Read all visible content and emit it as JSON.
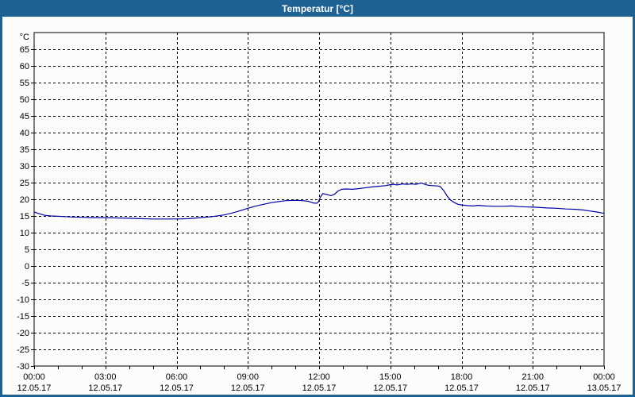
{
  "window": {
    "title": "Temperatur [°C]",
    "colors": {
      "titlebar": "#1e6193",
      "border": "#1e6193",
      "background": "#fcfdfa"
    }
  },
  "chart_data": {
    "type": "line",
    "title": "Temperatur [°C]",
    "ylabel": "°C",
    "xlabel": "",
    "legend": "none",
    "grid": "dashed-black",
    "line_color": "#0000a8",
    "frame_color": "#000000",
    "ylim": [
      -30,
      70
    ],
    "y_label_step": 5,
    "y_tick_labels": [
      65,
      60,
      55,
      50,
      45,
      40,
      35,
      30,
      25,
      20,
      15,
      10,
      5,
      0,
      -5,
      -10,
      -15,
      -20,
      -25,
      -30
    ],
    "x_range_hours": [
      0,
      24
    ],
    "x_major_step_hours": 3,
    "x_minor_step_hours": 1,
    "x_ticks": [
      {
        "time": "00:00",
        "date": "12.05.17"
      },
      {
        "time": "03:00",
        "date": "12.05.17"
      },
      {
        "time": "06:00",
        "date": "12.05.17"
      },
      {
        "time": "09:00",
        "date": "12.05.17"
      },
      {
        "time": "12:00",
        "date": "12.05.17"
      },
      {
        "time": "15:00",
        "date": "12.05.17"
      },
      {
        "time": "18:00",
        "date": "12.05.17"
      },
      {
        "time": "21:00",
        "date": "12.05.17"
      },
      {
        "time": "00:00",
        "date": "13.05.17"
      }
    ],
    "series": [
      {
        "name": "Temperatur",
        "unit": "°C",
        "points": [
          [
            0.0,
            16.2
          ],
          [
            0.2,
            15.7
          ],
          [
            0.45,
            15.2
          ],
          [
            0.7,
            15.0
          ],
          [
            1.0,
            14.9
          ],
          [
            1.3,
            14.8
          ],
          [
            1.6,
            14.7
          ],
          [
            2.0,
            14.6
          ],
          [
            2.5,
            14.5
          ],
          [
            3.0,
            14.5
          ],
          [
            3.5,
            14.4
          ],
          [
            4.0,
            14.3
          ],
          [
            4.5,
            14.2
          ],
          [
            5.0,
            14.1
          ],
          [
            5.5,
            14.1
          ],
          [
            6.0,
            14.1
          ],
          [
            6.5,
            14.2
          ],
          [
            7.0,
            14.5
          ],
          [
            7.5,
            14.8
          ],
          [
            8.0,
            15.3
          ],
          [
            8.3,
            15.8
          ],
          [
            8.6,
            16.4
          ],
          [
            9.0,
            17.3
          ],
          [
            9.3,
            17.9
          ],
          [
            9.6,
            18.4
          ],
          [
            10.0,
            19.0
          ],
          [
            10.3,
            19.3
          ],
          [
            10.6,
            19.6
          ],
          [
            11.0,
            19.7
          ],
          [
            11.3,
            19.6
          ],
          [
            11.55,
            19.4
          ],
          [
            11.75,
            18.9
          ],
          [
            11.9,
            18.8
          ],
          [
            11.97,
            19.2
          ],
          [
            12.05,
            20.6
          ],
          [
            12.15,
            21.7
          ],
          [
            12.3,
            21.5
          ],
          [
            12.5,
            21.1
          ],
          [
            12.65,
            21.5
          ],
          [
            12.8,
            22.5
          ],
          [
            12.95,
            23.0
          ],
          [
            13.15,
            23.1
          ],
          [
            13.4,
            23.0
          ],
          [
            13.65,
            23.2
          ],
          [
            13.9,
            23.4
          ],
          [
            14.2,
            23.7
          ],
          [
            14.5,
            23.9
          ],
          [
            14.8,
            24.1
          ],
          [
            15.0,
            24.4
          ],
          [
            15.15,
            24.5
          ],
          [
            15.3,
            24.3
          ],
          [
            15.5,
            24.6
          ],
          [
            15.7,
            24.5
          ],
          [
            15.9,
            24.6
          ],
          [
            16.1,
            24.5
          ],
          [
            16.3,
            24.9
          ],
          [
            16.45,
            24.5
          ],
          [
            16.6,
            24.2
          ],
          [
            16.8,
            24.1
          ],
          [
            17.0,
            24.0
          ],
          [
            17.1,
            23.8
          ],
          [
            17.25,
            22.6
          ],
          [
            17.4,
            20.9
          ],
          [
            17.55,
            19.7
          ],
          [
            17.7,
            19.0
          ],
          [
            17.85,
            18.5
          ],
          [
            18.0,
            18.3
          ],
          [
            18.25,
            18.1
          ],
          [
            18.5,
            18.0
          ],
          [
            18.7,
            18.2
          ],
          [
            19.0,
            18.0
          ],
          [
            19.4,
            17.9
          ],
          [
            19.8,
            17.9
          ],
          [
            20.1,
            18.0
          ],
          [
            20.4,
            17.8
          ],
          [
            20.8,
            17.7
          ],
          [
            21.2,
            17.6
          ],
          [
            21.6,
            17.4
          ],
          [
            22.0,
            17.3
          ],
          [
            22.4,
            17.1
          ],
          [
            22.8,
            17.0
          ],
          [
            23.1,
            16.8
          ],
          [
            23.4,
            16.5
          ],
          [
            23.7,
            16.2
          ],
          [
            23.9,
            15.9
          ],
          [
            24.0,
            15.8
          ]
        ]
      }
    ]
  }
}
